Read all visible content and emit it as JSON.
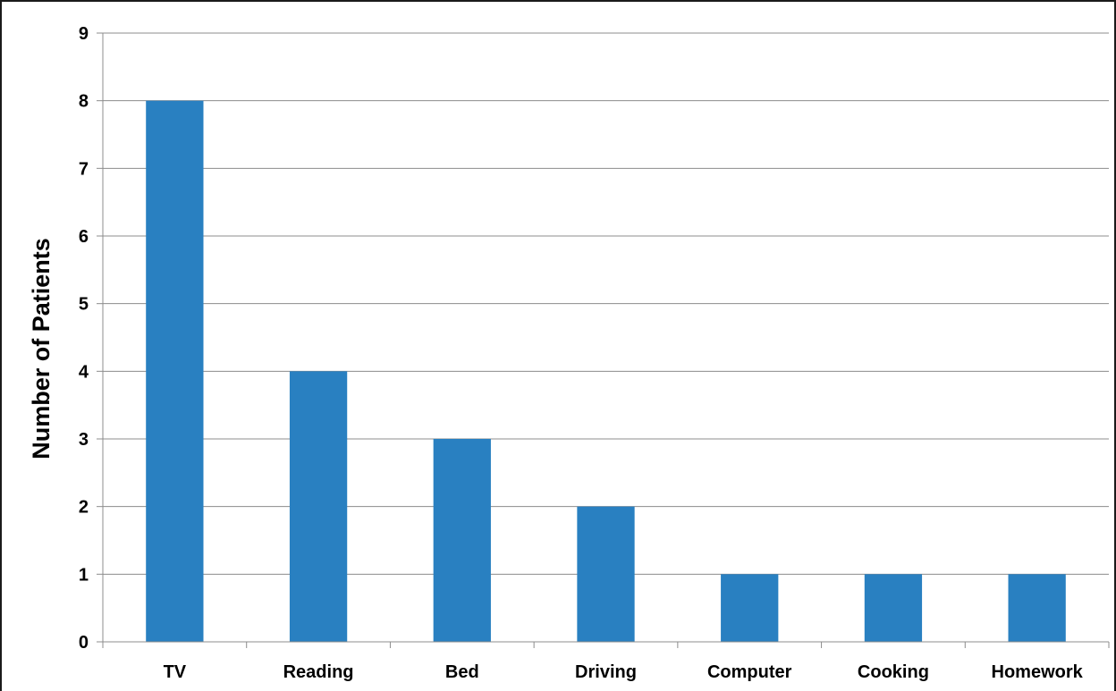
{
  "chart_data": {
    "type": "bar",
    "title": "",
    "xlabel": "",
    "ylabel": "Number of Patients",
    "categories": [
      "TV",
      "Reading",
      "Bed",
      "Driving",
      "Computer",
      "Cooking",
      "Homework"
    ],
    "values": [
      8,
      4,
      3,
      2,
      1,
      1,
      1
    ],
    "ylim": [
      0,
      9
    ],
    "yticks": [
      "0",
      "1",
      "2",
      "3",
      "4",
      "5",
      "6",
      "7",
      "8",
      "9"
    ],
    "grid": true,
    "legend": "none",
    "colors": {
      "bar": "#2980C1",
      "grid": "#8c8c8c",
      "axis": "#8c8c8c"
    }
  }
}
